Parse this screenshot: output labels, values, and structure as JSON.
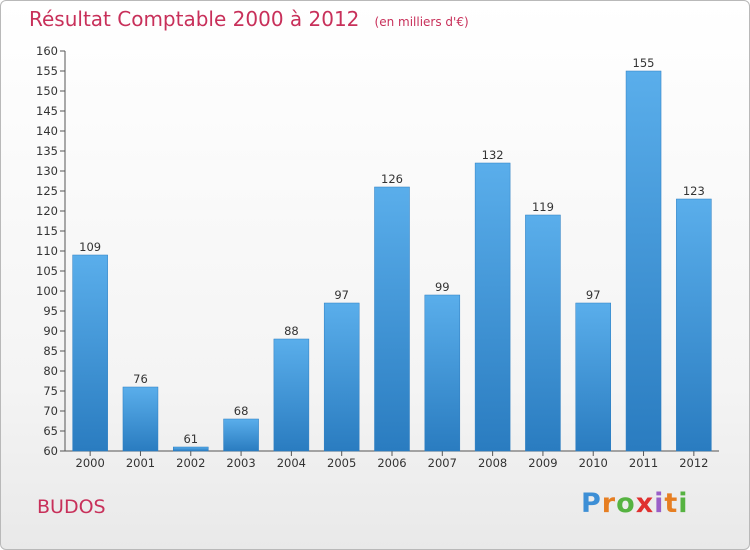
{
  "header": {
    "title": "Résultat Comptable 2000 à 2012",
    "subtitle": "(en milliers d'€)"
  },
  "footer": {
    "commune": "BUDOS",
    "logo_text": "Proxiti"
  },
  "colors": {
    "title": "#c8305a",
    "bar_top": "#5aaeeb",
    "bar_bottom": "#2a7cc0",
    "axis": "#555555"
  },
  "chart_data": {
    "type": "bar",
    "categories": [
      "2000",
      "2001",
      "2002",
      "2003",
      "2004",
      "2005",
      "2006",
      "2007",
      "2008",
      "2009",
      "2010",
      "2011",
      "2012"
    ],
    "values": [
      109,
      76,
      61,
      68,
      88,
      97,
      126,
      99,
      132,
      119,
      97,
      155,
      123
    ],
    "title": "Résultat Comptable 2000 à 2012",
    "subtitle": "(en milliers d'€)",
    "xlabel": "",
    "ylabel": "",
    "ylim": [
      60,
      160
    ],
    "ytick_step": 5,
    "grid": false,
    "legend": "none"
  }
}
